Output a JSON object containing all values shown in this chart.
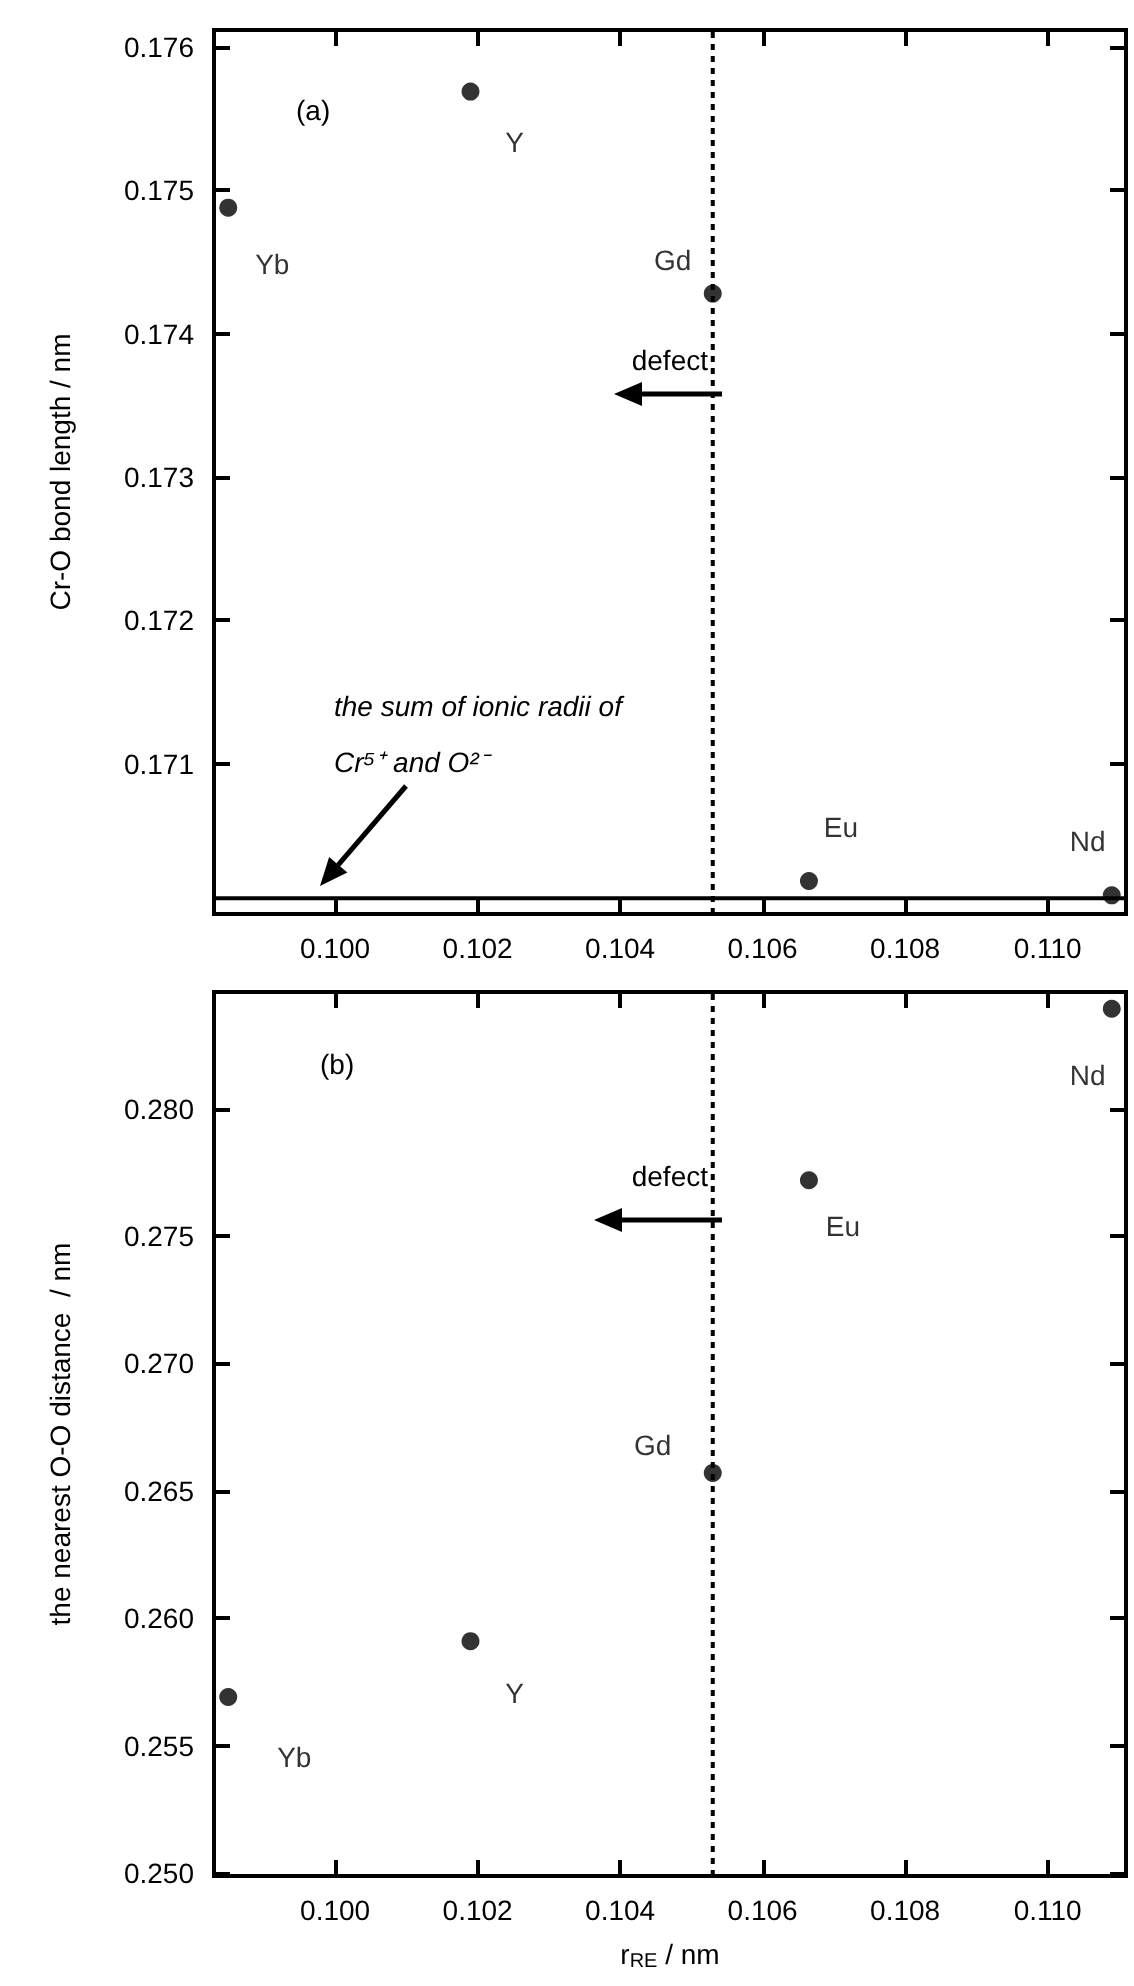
{
  "chart_data": [
    {
      "type": "scatter",
      "ylabel": "Cr-O bond length / nm",
      "x": [
        0.0985,
        0.1019,
        0.1053,
        0.10665,
        0.1109
      ],
      "series": [
        {
          "color": "#000000",
          "values": [
            0.17488,
            0.17569,
            0.17428,
            0.17018,
            0.17008
          ]
        }
      ],
      "xlim": [
        0.0983,
        0.1111
      ],
      "ylim": [
        0.16995,
        0.17612
      ],
      "xticks": [
        {
          "value": 0.1,
          "label": "0.100"
        },
        {
          "value": 0.102,
          "label": "0.102"
        },
        {
          "value": 0.104,
          "label": "0.104"
        },
        {
          "value": 0.106,
          "label": "0.106"
        },
        {
          "value": 0.108,
          "label": "0.108"
        },
        {
          "value": 0.11,
          "label": "0.110"
        }
      ],
      "yticks": [
        0.171,
        0.172,
        0.173,
        0.174,
        0.175,
        0.176
      ],
      "ref_lines": [
        {
          "axis": "x",
          "value": 0.1053,
          "line_style": "dotted",
          "color": "#000000"
        },
        {
          "axis": "y",
          "value": 0.17006,
          "line_style": "solid",
          "color": "#000000"
        }
      ],
      "annotations": [
        "(a)",
        "defect",
        "the sum of ionic radii of Cr⁵⁺ and O²⁻",
        {
          "text": "Yb",
          "x": 0.0985,
          "y": 0.17488
        },
        {
          "text": "Y",
          "x": 0.1019,
          "y": 0.17569
        },
        {
          "text": "Gd",
          "x": 0.1053,
          "y": 0.17428
        },
        {
          "text": "Eu",
          "x": 0.10665,
          "y": 0.17018
        },
        {
          "text": "Nd",
          "x": 0.1109,
          "y": 0.17008
        }
      ],
      "marker": "circle",
      "grid": false
    },
    {
      "type": "scatter",
      "xlabel": "r$_{RE}$ / nm",
      "ylabel": "the nearest O-O distance  / nm",
      "x": [
        0.0985,
        0.1019,
        0.1053,
        0.10665,
        0.1109
      ],
      "series": [
        {
          "color": "#000000",
          "values": [
            0.25692,
            0.25911,
            0.26571,
            0.27719,
            0.28391
          ]
        }
      ],
      "xlim": [
        0.0983,
        0.1111
      ],
      "ylim": [
        0.2499,
        0.28457
      ],
      "xticks": [
        {
          "value": 0.1,
          "label": "0.100"
        },
        {
          "value": 0.102,
          "label": "0.102"
        },
        {
          "value": 0.104,
          "label": "0.104"
        },
        {
          "value": 0.106,
          "label": "0.106"
        },
        {
          "value": 0.108,
          "label": "0.108"
        },
        {
          "value": 0.11,
          "label": "0.110"
        }
      ],
      "yticks": [
        {
          "value": 0.25,
          "label": "0.250"
        },
        0.255,
        {
          "value": 0.26,
          "label": "0.260"
        },
        0.265,
        {
          "value": 0.27,
          "label": "0.270"
        },
        0.275,
        {
          "value": 0.28,
          "label": "0.280"
        }
      ],
      "ref_lines": [
        {
          "axis": "x",
          "value": 0.1053,
          "line_style": "dotted",
          "color": "#000000"
        }
      ],
      "annotations": [
        "(b)",
        "defect",
        {
          "text": "Yb",
          "x": 0.0985,
          "y": 0.25692
        },
        {
          "text": "Y",
          "x": 0.1019,
          "y": 0.25911
        },
        {
          "text": "Gd",
          "x": 0.1053,
          "y": 0.26571
        },
        {
          "text": "Eu",
          "x": 0.10665,
          "y": 0.27719
        },
        {
          "text": "Nd",
          "x": 0.1109,
          "y": 0.28391
        }
      ],
      "marker": "circle",
      "grid": false
    }
  ]
}
